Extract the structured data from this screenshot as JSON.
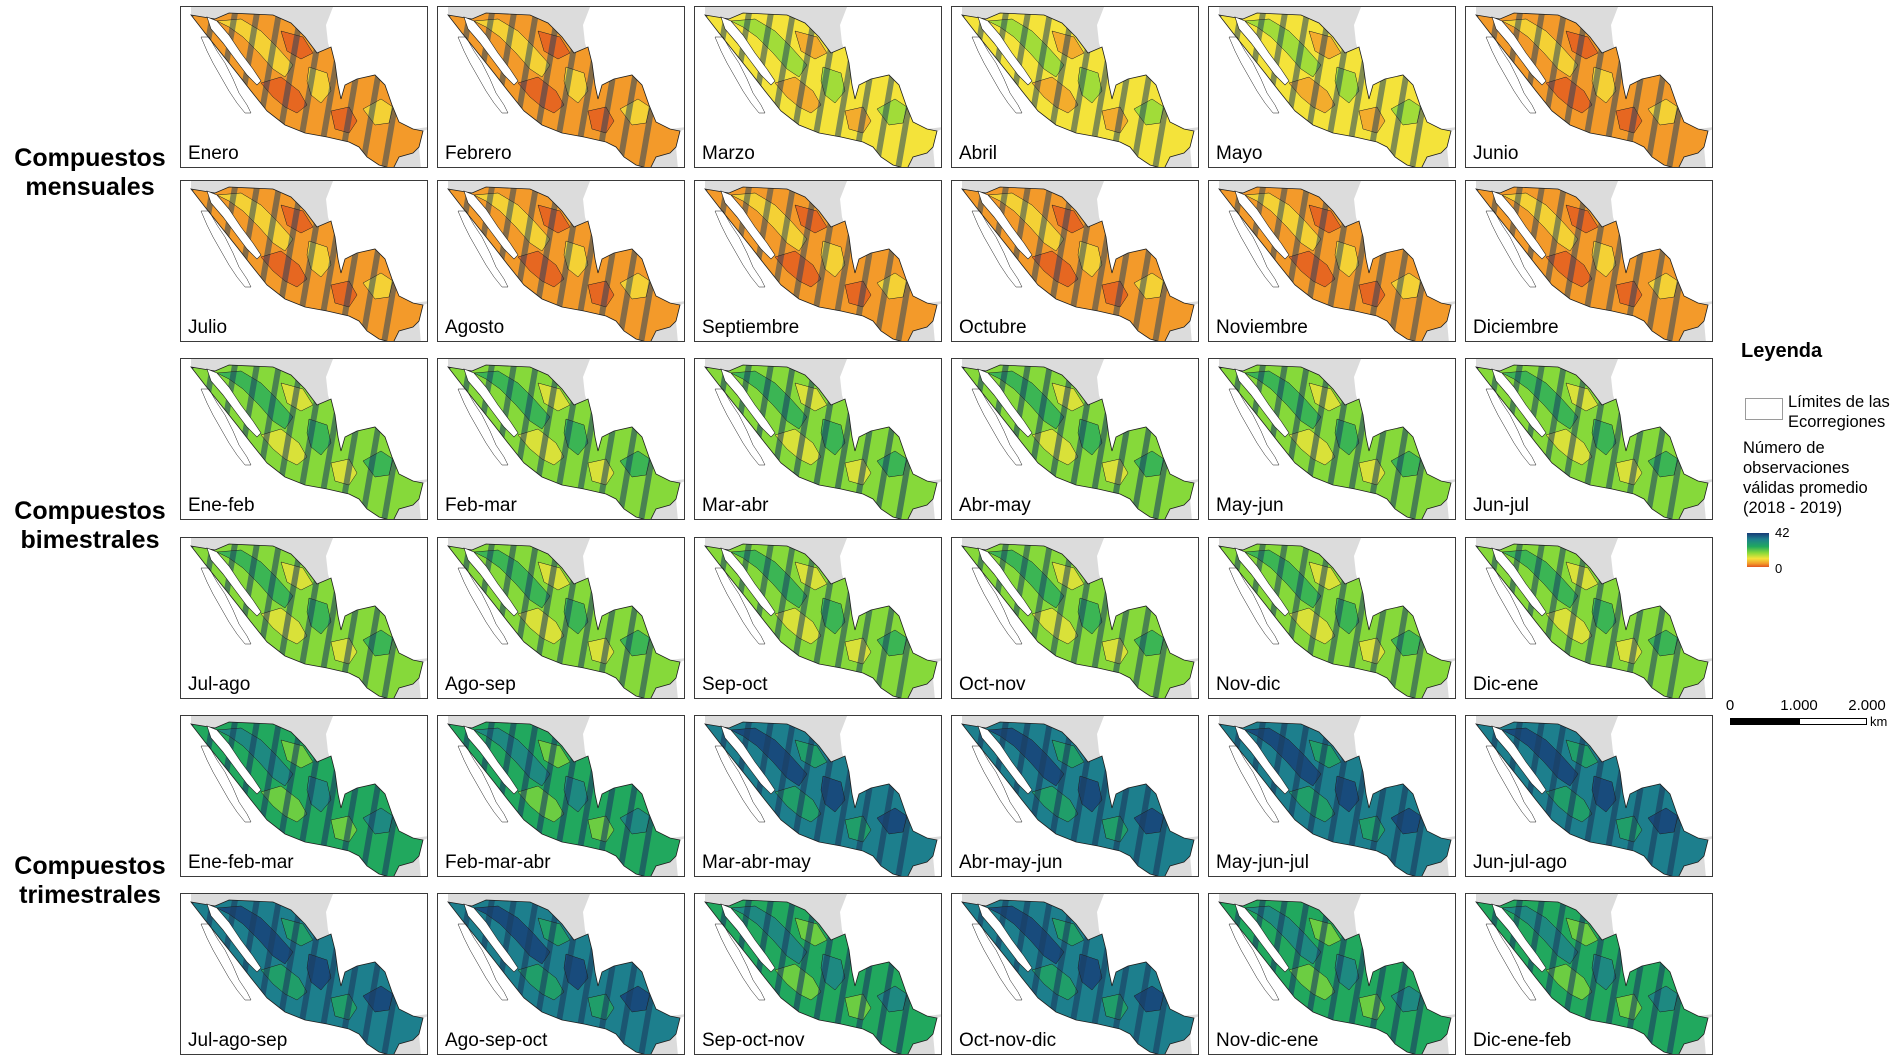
{
  "group_labels": [
    {
      "line1": "Compuestos",
      "line2": "mensuales"
    },
    {
      "line1": "Compuestos",
      "line2": "bimestrales"
    },
    {
      "line1": "Compuestos",
      "line2": "trimestrales"
    }
  ],
  "panels": [
    {
      "label": "Enero",
      "level": 0.22
    },
    {
      "label": "Febrero",
      "level": 0.25
    },
    {
      "label": "Marzo",
      "level": 0.33
    },
    {
      "label": "Abril",
      "level": 0.34
    },
    {
      "label": "Mayo",
      "level": 0.32
    },
    {
      "label": "Junio",
      "level": 0.24
    },
    {
      "label": "Julio",
      "level": 0.25
    },
    {
      "label": "Agosto",
      "level": 0.24
    },
    {
      "label": "Septiembre",
      "level": 0.21
    },
    {
      "label": "Octubre",
      "level": 0.22
    },
    {
      "label": "Noviembre",
      "level": 0.22
    },
    {
      "label": "Diciembre",
      "level": 0.24
    },
    {
      "label": "Ene-feb",
      "level": 0.45
    },
    {
      "label": "Feb-mar",
      "level": 0.48
    },
    {
      "label": "Mar-abr",
      "level": 0.58
    },
    {
      "label": "Abr-may",
      "level": 0.58
    },
    {
      "label": "May-jun",
      "level": 0.54
    },
    {
      "label": "Jun-jul",
      "level": 0.47
    },
    {
      "label": "Jul-ago",
      "level": 0.5
    },
    {
      "label": "Ago-sep",
      "level": 0.5
    },
    {
      "label": "Sep-oct",
      "level": 0.43
    },
    {
      "label": "Oct-nov",
      "level": 0.42
    },
    {
      "label": "Nov-dic",
      "level": 0.44
    },
    {
      "label": "Dic-ene",
      "level": 0.47
    },
    {
      "label": "Ene-feb-mar",
      "level": 0.66
    },
    {
      "label": "Feb-mar-abr",
      "level": 0.72
    },
    {
      "label": "Mar-abr-may",
      "level": 0.8
    },
    {
      "label": "Abr-may-jun",
      "level": 0.86
    },
    {
      "label": "May-jun-jul",
      "level": 0.86
    },
    {
      "label": "Jun-jul-ago",
      "level": 0.85
    },
    {
      "label": "Jul-ago-sep",
      "level": 0.8
    },
    {
      "label": "Ago-sep-oct",
      "level": 0.79
    },
    {
      "label": "Sep-oct-nov",
      "level": 0.74
    },
    {
      "label": "Oct-nov-dic",
      "level": 0.76
    },
    {
      "label": "Nov-dic-ene",
      "level": 0.72
    },
    {
      "label": "Dic-ene-feb",
      "level": 0.66
    }
  ],
  "legend": {
    "title": "Leyenda",
    "boundary_line1": "Límites de las",
    "boundary_line2": "Ecorregiones",
    "desc_line1": "Número de",
    "desc_line2": "observaciones",
    "desc_line3": "válidas promedio",
    "desc_line4": "(2018 - 2019)",
    "ramp_max": "42",
    "ramp_min": "0",
    "ramp_colors": [
      "#173a77",
      "#1d7f8d",
      "#21a85e",
      "#86d93a",
      "#f4e33a",
      "#f39a2a",
      "#e2551f"
    ]
  },
  "scale_bar": {
    "ticks": [
      "0",
      "1.000",
      "2.000"
    ],
    "unit": "km"
  },
  "map_colors": {
    "land_background": "#dcdcdc",
    "water": "#ffffff",
    "stripe": "#1b3f62",
    "boundary": "#1e1e1e"
  }
}
